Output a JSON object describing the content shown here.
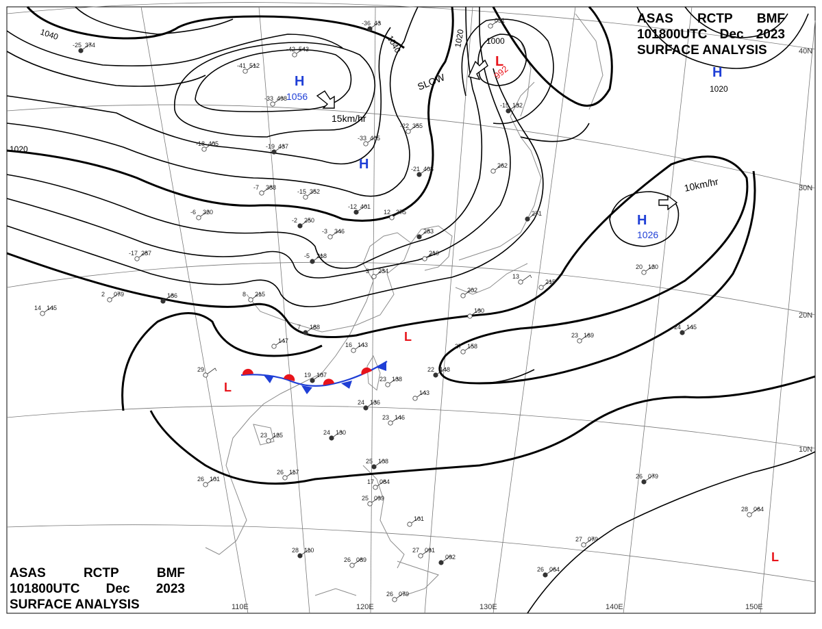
{
  "title": {
    "line1": [
      "ASAS",
      "RCTP",
      "BMF"
    ],
    "line2": [
      "101800UTC",
      "Dec",
      "2023"
    ],
    "line3": "SURFACE ANALYSIS"
  },
  "colors": {
    "high": "#1f3fd6",
    "low": "#e8141b",
    "warm_front": "#e8141b",
    "cold_front": "#1f3fd6",
    "isobar": "#000000",
    "grid": "#777777",
    "coast": "#8a8a8a"
  },
  "isobar_labels": [
    "1040",
    "1040",
    "1020",
    "1020",
    "1000",
    "1020"
  ],
  "pressure_centers": [
    {
      "type": "H",
      "value": "1056"
    },
    {
      "type": "H",
      "value": ""
    },
    {
      "type": "L",
      "value": "992"
    },
    {
      "type": "H",
      "value": ""
    },
    {
      "type": "H",
      "value": "1026"
    },
    {
      "type": "L",
      "value": ""
    },
    {
      "type": "L",
      "value": ""
    },
    {
      "type": "L",
      "value": ""
    }
  ],
  "motion_labels": [
    "15km/hr",
    "SLOW",
    "10km/hr"
  ],
  "lon_labels": [
    "110E",
    "120E",
    "130E",
    "140E",
    "150E"
  ],
  "lat_labels": [
    "40N",
    "30N",
    "20N",
    "10N"
  ],
  "stations": [
    {
      "t": "-25",
      "p": "374"
    },
    {
      "t": "-41",
      "p": "512"
    },
    {
      "t": "-42",
      "p": "543"
    },
    {
      "t": "-36",
      "p": "43"
    },
    {
      "t": "-33",
      "p": "498"
    },
    {
      "t": "-18",
      "p": "405"
    },
    {
      "t": "-19",
      "p": "437"
    },
    {
      "t": "-22",
      "p": "355"
    },
    {
      "t": "-33",
      "p": "405"
    },
    {
      "t": "-21",
      "p": "408"
    },
    {
      "t": "-7",
      "p": "388"
    },
    {
      "t": "-15",
      "p": "352"
    },
    {
      "t": "-12",
      "p": "401"
    },
    {
      "t": "12",
      "p": "375"
    },
    {
      "t": "-6",
      "p": "320"
    },
    {
      "t": "-2",
      "p": "250"
    },
    {
      "t": "-3",
      "p": "346"
    },
    {
      "t": "-17",
      "p": "287"
    },
    {
      "t": "-5",
      "p": "218"
    },
    {
      "t": "3",
      "p": "234"
    },
    {
      "t": "2",
      "p": "079"
    },
    {
      "t": "",
      "p": "186"
    },
    {
      "t": "8",
      "p": "215"
    },
    {
      "t": "14",
      "p": "145"
    },
    {
      "t": "7",
      "p": "188"
    },
    {
      "t": "",
      "p": "147"
    },
    {
      "t": "16",
      "p": "143"
    },
    {
      "t": "19",
      "p": "107"
    },
    {
      "t": "23",
      "p": "138"
    },
    {
      "t": "",
      "p": "143"
    },
    {
      "t": "22",
      "p": "148"
    },
    {
      "t": "27",
      "p": "158"
    },
    {
      "t": "23",
      "p": "169"
    },
    {
      "t": "24",
      "p": "145"
    },
    {
      "t": "20",
      "p": "120"
    },
    {
      "t": "29",
      "p": ""
    },
    {
      "t": "24",
      "p": "136"
    },
    {
      "t": "23",
      "p": "146"
    },
    {
      "t": "23",
      "p": "125"
    },
    {
      "t": "24",
      "p": "130"
    },
    {
      "t": "26",
      "p": "117"
    },
    {
      "t": "26",
      "p": "101"
    },
    {
      "t": "25",
      "p": "108"
    },
    {
      "t": "17",
      "p": "084"
    },
    {
      "t": "25",
      "p": "099"
    },
    {
      "t": "28",
      "p": "110"
    },
    {
      "t": "26",
      "p": "089"
    },
    {
      "t": "27",
      "p": "091"
    },
    {
      "t": "",
      "p": "092"
    },
    {
      "t": "26",
      "p": "079"
    },
    {
      "t": "",
      "p": "101"
    },
    {
      "t": "26",
      "p": "079"
    },
    {
      "t": "28",
      "p": "064"
    },
    {
      "t": "27",
      "p": "079"
    },
    {
      "t": "26",
      "p": "064"
    },
    {
      "t": "",
      "p": "215"
    },
    {
      "t": "13",
      "p": ""
    },
    {
      "t": "",
      "p": "271"
    },
    {
      "t": "",
      "p": "262"
    },
    {
      "t": "",
      "p": "210"
    },
    {
      "t": "",
      "p": "283"
    },
    {
      "t": "",
      "p": "202"
    },
    {
      "t": "",
      "p": "190"
    },
    {
      "t": "-15",
      "p": "132"
    },
    {
      "t": "",
      "p": "031"
    }
  ]
}
